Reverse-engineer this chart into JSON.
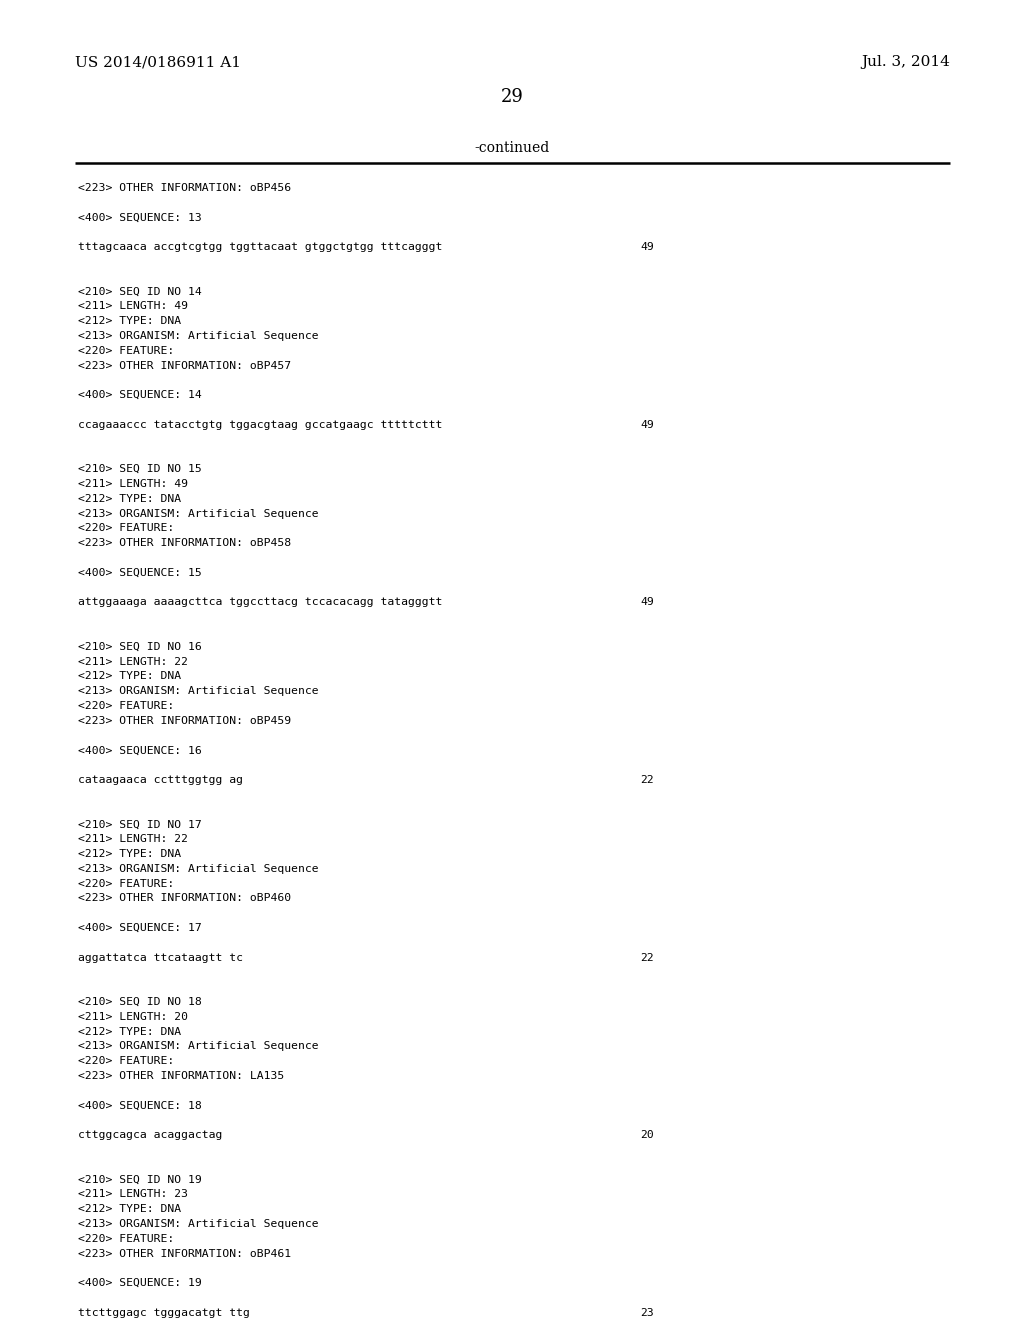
{
  "background_color": "#ffffff",
  "text_color": "#000000",
  "header_left": "US 2014/0186911 A1",
  "header_right": "Jul. 3, 2014",
  "page_number": "29",
  "continued_label": "-continued",
  "content_lines": [
    {
      "text": "<223> OTHER INFORMATION: oBP456",
      "num": null
    },
    {
      "text": "",
      "num": null
    },
    {
      "text": "<400> SEQUENCE: 13",
      "num": null
    },
    {
      "text": "",
      "num": null
    },
    {
      "text": "tttagcaaca accgtcgtgg tggttacaat gtggctgtgg tttcagggt",
      "num": "49"
    },
    {
      "text": "",
      "num": null
    },
    {
      "text": "",
      "num": null
    },
    {
      "text": "<210> SEQ ID NO 14",
      "num": null
    },
    {
      "text": "<211> LENGTH: 49",
      "num": null
    },
    {
      "text": "<212> TYPE: DNA",
      "num": null
    },
    {
      "text": "<213> ORGANISM: Artificial Sequence",
      "num": null
    },
    {
      "text": "<220> FEATURE:",
      "num": null
    },
    {
      "text": "<223> OTHER INFORMATION: oBP457",
      "num": null
    },
    {
      "text": "",
      "num": null
    },
    {
      "text": "<400> SEQUENCE: 14",
      "num": null
    },
    {
      "text": "",
      "num": null
    },
    {
      "text": "ccagaaaccc tatacctgtg tggacgtaag gccatgaagc tttttcttt",
      "num": "49"
    },
    {
      "text": "",
      "num": null
    },
    {
      "text": "",
      "num": null
    },
    {
      "text": "<210> SEQ ID NO 15",
      "num": null
    },
    {
      "text": "<211> LENGTH: 49",
      "num": null
    },
    {
      "text": "<212> TYPE: DNA",
      "num": null
    },
    {
      "text": "<213> ORGANISM: Artificial Sequence",
      "num": null
    },
    {
      "text": "<220> FEATURE:",
      "num": null
    },
    {
      "text": "<223> OTHER INFORMATION: oBP458",
      "num": null
    },
    {
      "text": "",
      "num": null
    },
    {
      "text": "<400> SEQUENCE: 15",
      "num": null
    },
    {
      "text": "",
      "num": null
    },
    {
      "text": "attggaaaga aaaagcttca tggccttacg tccacacagg tatagggtt",
      "num": "49"
    },
    {
      "text": "",
      "num": null
    },
    {
      "text": "",
      "num": null
    },
    {
      "text": "<210> SEQ ID NO 16",
      "num": null
    },
    {
      "text": "<211> LENGTH: 22",
      "num": null
    },
    {
      "text": "<212> TYPE: DNA",
      "num": null
    },
    {
      "text": "<213> ORGANISM: Artificial Sequence",
      "num": null
    },
    {
      "text": "<220> FEATURE:",
      "num": null
    },
    {
      "text": "<223> OTHER INFORMATION: oBP459",
      "num": null
    },
    {
      "text": "",
      "num": null
    },
    {
      "text": "<400> SEQUENCE: 16",
      "num": null
    },
    {
      "text": "",
      "num": null
    },
    {
      "text": "cataagaaca cctttggtgg ag",
      "num": "22"
    },
    {
      "text": "",
      "num": null
    },
    {
      "text": "",
      "num": null
    },
    {
      "text": "<210> SEQ ID NO 17",
      "num": null
    },
    {
      "text": "<211> LENGTH: 22",
      "num": null
    },
    {
      "text": "<212> TYPE: DNA",
      "num": null
    },
    {
      "text": "<213> ORGANISM: Artificial Sequence",
      "num": null
    },
    {
      "text": "<220> FEATURE:",
      "num": null
    },
    {
      "text": "<223> OTHER INFORMATION: oBP460",
      "num": null
    },
    {
      "text": "",
      "num": null
    },
    {
      "text": "<400> SEQUENCE: 17",
      "num": null
    },
    {
      "text": "",
      "num": null
    },
    {
      "text": "aggattatca ttcataagtt tc",
      "num": "22"
    },
    {
      "text": "",
      "num": null
    },
    {
      "text": "",
      "num": null
    },
    {
      "text": "<210> SEQ ID NO 18",
      "num": null
    },
    {
      "text": "<211> LENGTH: 20",
      "num": null
    },
    {
      "text": "<212> TYPE: DNA",
      "num": null
    },
    {
      "text": "<213> ORGANISM: Artificial Sequence",
      "num": null
    },
    {
      "text": "<220> FEATURE:",
      "num": null
    },
    {
      "text": "<223> OTHER INFORMATION: LA135",
      "num": null
    },
    {
      "text": "",
      "num": null
    },
    {
      "text": "<400> SEQUENCE: 18",
      "num": null
    },
    {
      "text": "",
      "num": null
    },
    {
      "text": "cttggcagca acaggactag",
      "num": "20"
    },
    {
      "text": "",
      "num": null
    },
    {
      "text": "",
      "num": null
    },
    {
      "text": "<210> SEQ ID NO 19",
      "num": null
    },
    {
      "text": "<211> LENGTH: 23",
      "num": null
    },
    {
      "text": "<212> TYPE: DNA",
      "num": null
    },
    {
      "text": "<213> ORGANISM: Artificial Sequence",
      "num": null
    },
    {
      "text": "<220> FEATURE:",
      "num": null
    },
    {
      "text": "<223> OTHER INFORMATION: oBP461",
      "num": null
    },
    {
      "text": "",
      "num": null
    },
    {
      "text": "<400> SEQUENCE: 19",
      "num": null
    },
    {
      "text": "",
      "num": null
    },
    {
      "text": "ttcttggagc tgggacatgt ttg",
      "num": "23"
    }
  ]
}
